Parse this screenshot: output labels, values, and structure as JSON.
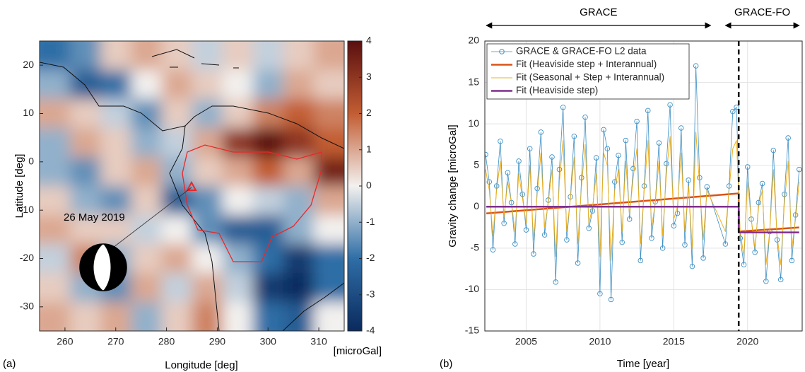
{
  "chart_data": [
    {
      "type": "heatmap",
      "x_label": "Longitude [deg]",
      "y_label": "Latitude [deg]",
      "colorbar_label": "[microGal]",
      "panel_label": "(a)",
      "annotation": "26 May 2019",
      "xlim": [
        255,
        315
      ],
      "ylim": [
        -35,
        25
      ],
      "xticks": [
        260,
        270,
        280,
        290,
        300,
        310
      ],
      "yticks": [
        20,
        10,
        0,
        -10,
        -20,
        -30
      ],
      "clim": [
        -4,
        4
      ],
      "cticks": [
        -4,
        -3,
        -2,
        -1,
        0,
        1,
        2,
        3,
        4
      ],
      "colormap": [
        "#0a2a5e",
        "#2f6ea6",
        "#f3f1ef",
        "#c25d33",
        "#5a0f0f"
      ],
      "x": [
        258,
        264,
        270,
        276,
        282,
        288,
        294,
        300,
        306,
        312
      ],
      "y": [
        22,
        16,
        10,
        4,
        -2,
        -8,
        -14,
        -20,
        -26,
        -32
      ],
      "z": [
        [
          -2,
          -1.5,
          0.5,
          1,
          0.5,
          -0.5,
          0.5,
          -0.5,
          0.5,
          1
        ],
        [
          -1,
          -2.5,
          -2,
          0,
          1,
          0.5,
          0,
          -1,
          1,
          0.5
        ],
        [
          1,
          0.5,
          -0.5,
          -1.5,
          0.5,
          -1,
          0.5,
          1.5,
          2,
          1.5
        ],
        [
          -1,
          1,
          0.5,
          -1,
          -0.5,
          1,
          3,
          4,
          3,
          2
        ],
        [
          -1,
          -1.5,
          0.5,
          1,
          -1,
          0.5,
          1,
          2,
          1,
          3.5
        ],
        [
          0.5,
          -1,
          -1.5,
          0.5,
          -2.5,
          -1.5,
          0,
          -0.5,
          -1,
          1
        ],
        [
          1,
          0.5,
          0.5,
          -0.5,
          0,
          -1.5,
          -2.5,
          -2.5,
          -1,
          0
        ],
        [
          -0.5,
          1.5,
          -1,
          0.5,
          1,
          0,
          -1,
          -2,
          -3.5,
          -2
        ],
        [
          0.5,
          -1,
          -1.5,
          1,
          -0.5,
          1,
          -0.5,
          -3.5,
          -4,
          -2
        ],
        [
          1,
          0.5,
          1,
          -1,
          0.5,
          1.5,
          0,
          -2,
          -2.5,
          0
        ]
      ]
    },
    {
      "type": "line",
      "x_label": "Time [year]",
      "y_label": "Gravity change [microGal]",
      "panel_label": "(b)",
      "xlim": [
        2002.2,
        2023.7
      ],
      "ylim": [
        -15,
        20
      ],
      "xticks": [
        2005,
        2010,
        2015,
        2020
      ],
      "yticks": [
        -15,
        -10,
        -5,
        0,
        5,
        10,
        15,
        20
      ],
      "grid": true,
      "legend": "upper left",
      "event_x": 2019.4,
      "periods": [
        {
          "label": "GRACE",
          "start": 2002.3,
          "end": 2017.5
        },
        {
          "label": "GRACE-FO",
          "start": 2018.5,
          "end": 2023.5
        }
      ],
      "x": [
        2002.25,
        2002.5,
        2002.75,
        2003,
        2003.25,
        2003.5,
        2003.75,
        2004,
        2004.25,
        2004.5,
        2004.75,
        2005,
        2005.25,
        2005.5,
        2005.75,
        2006,
        2006.25,
        2006.5,
        2006.75,
        2007,
        2007.25,
        2007.5,
        2007.75,
        2008,
        2008.25,
        2008.5,
        2008.75,
        2009,
        2009.25,
        2009.5,
        2009.75,
        2010,
        2010.25,
        2010.5,
        2010.75,
        2011,
        2011.25,
        2011.5,
        2011.75,
        2012,
        2012.25,
        2012.5,
        2012.75,
        2013,
        2013.25,
        2013.5,
        2013.75,
        2014,
        2014.25,
        2014.5,
        2014.75,
        2015,
        2015.25,
        2015.5,
        2015.75,
        2016,
        2016.25,
        2016.5,
        2016.75,
        2017,
        2017.25,
        2018.5,
        2018.75,
        2019,
        2019.25,
        2019.5,
        2019.75,
        2020,
        2020.25,
        2020.5,
        2020.75,
        2021,
        2021.25,
        2021.5,
        2021.75,
        2022,
        2022.25,
        2022.5,
        2022.75,
        2023,
        2023.25,
        2023.5
      ],
      "series": [
        {
          "name": "GRACE & GRACE-FO L2 data",
          "color": "#3b8fc4",
          "markers": true,
          "values": [
            6.3,
            3,
            -5.2,
            2.5,
            7.9,
            -2,
            4.1,
            0.5,
            -4.5,
            5.5,
            1.5,
            -2.8,
            7,
            -5.7,
            2.2,
            9,
            -3.4,
            0.8,
            6,
            -9.1,
            4.5,
            12,
            -4,
            1.2,
            8.5,
            -6.8,
            3.5,
            10.8,
            -2.6,
            -0.5,
            5.9,
            -10.5,
            9.3,
            7,
            -11.2,
            3,
            6.2,
            -4.3,
            8,
            -1.5,
            4.6,
            10.3,
            -6.5,
            2.5,
            11.6,
            -3.8,
            0.6,
            7.7,
            -5,
            5.2,
            12.3,
            -2.3,
            -0.8,
            9.5,
            -4.6,
            3.2,
            -7.2,
            17,
            3.5,
            -6.2,
            2.4,
            -4.5,
            2.5,
            11.5,
            12,
            -3.8,
            -7,
            4.8,
            -1.5,
            -5.5,
            0.5,
            2.8,
            -9,
            -3,
            6.8,
            -4,
            -8.8,
            1.5,
            8.3,
            -6.5,
            -1,
            4.5
          ]
        },
        {
          "name": "Fit (Heaviside step + Interannual)",
          "color": "#d95319",
          "width": 2.5,
          "x": [
            2002.3,
            2019.4,
            2019.4,
            2023.5
          ],
          "values": [
            -0.8,
            1.6,
            -3,
            -2.5
          ]
        },
        {
          "name": "Fit (Seasonal + Step + Interannual)",
          "color": "#edb120",
          "width": 1,
          "values": [
            4.5,
            2,
            -3.5,
            2,
            5.5,
            -1.2,
            3,
            0.5,
            -3,
            4,
            1,
            -2,
            5,
            -4,
            1.5,
            6.5,
            -2.5,
            0.5,
            4.5,
            -6,
            3,
            8,
            -3,
            1,
            6,
            -4.5,
            2.5,
            7.5,
            -2,
            0,
            4,
            -6,
            6.5,
            5,
            -6.5,
            2,
            4.5,
            -3,
            5.5,
            -1,
            3.5,
            7,
            -4.5,
            2,
            8,
            -2.5,
            0.5,
            5.5,
            -3.5,
            4,
            8.5,
            -1.5,
            0,
            6.5,
            -3,
            2.5,
            -5,
            9,
            2.5,
            -4,
            2,
            -3,
            2,
            7,
            8,
            -3,
            -6,
            3,
            -1.5,
            -5,
            0,
            2,
            -7,
            -3,
            4.5,
            -3.5,
            -7,
            0.5,
            5.5,
            -5,
            -1.5,
            3
          ]
        },
        {
          "name": "Fit (Heaviside step)",
          "color": "#7e2f8e",
          "width": 2.5,
          "x": [
            2002.3,
            2019.4,
            2019.4,
            2023.5
          ],
          "values": [
            0,
            0,
            -3.1,
            -3.1
          ]
        }
      ]
    }
  ]
}
